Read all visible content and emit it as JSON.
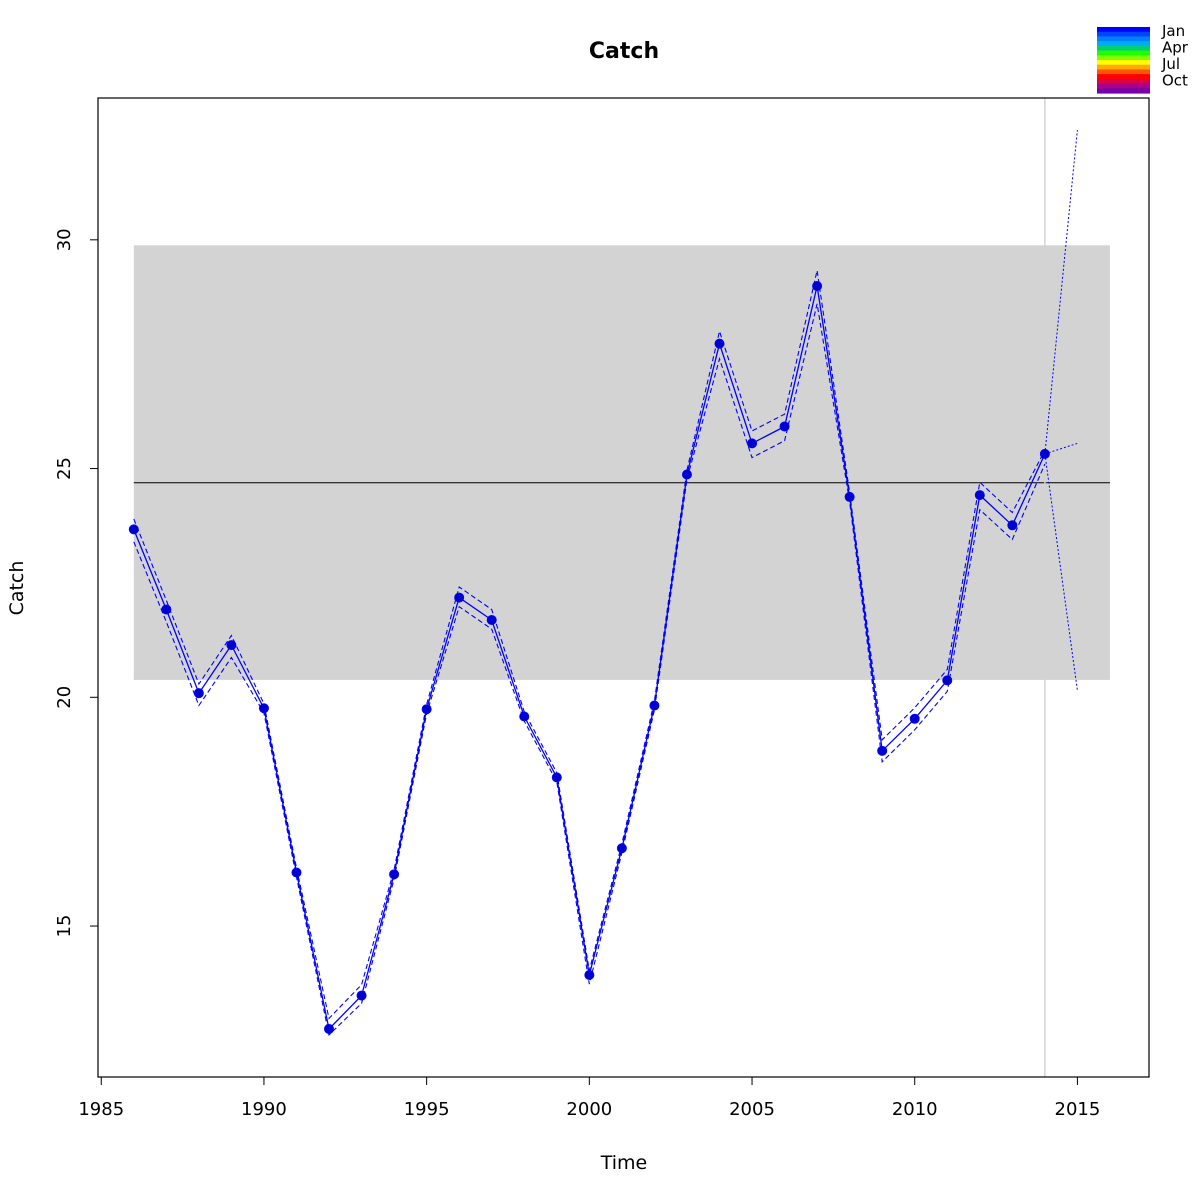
{
  "chart_data": {
    "type": "line",
    "title": "Catch",
    "xlabel": "Time",
    "ylabel": "Catch",
    "xlim": [
      1984.9,
      2017.2
    ],
    "ylim": [
      11.7,
      33.1
    ],
    "x_ticks": [
      1985,
      1990,
      1995,
      2000,
      2005,
      2010,
      2015
    ],
    "y_ticks": [
      15,
      20,
      25,
      30
    ],
    "band": {
      "x_range": [
        1986,
        2016
      ],
      "y_range": [
        20.38,
        29.88
      ],
      "color": "#d3d3d3"
    },
    "mean_line": {
      "x_range": [
        1986,
        2016
      ],
      "y": 24.69,
      "color": "#000000"
    },
    "forecast_marker_x": 2014,
    "series": [
      {
        "x": [
          1986,
          1987,
          1988,
          1989,
          1990,
          1991,
          1992,
          1993,
          1994,
          1995,
          1996,
          1997,
          1998,
          1999,
          2000,
          2001,
          2002,
          2003,
          2004,
          2005,
          2006,
          2007,
          2008,
          2009,
          2010,
          2011,
          2012,
          2013,
          2014
        ],
        "values": [
          23.67,
          21.92,
          20.09,
          21.14,
          19.76,
          16.17,
          12.75,
          13.48,
          16.13,
          19.74,
          22.18,
          21.69,
          19.58,
          18.25,
          13.93,
          16.7,
          19.82,
          24.87,
          27.73,
          25.55,
          25.92,
          28.99,
          24.38,
          18.83,
          19.53,
          20.37,
          24.42,
          23.76,
          25.32
        ],
        "upper": [
          23.9,
          22.12,
          20.29,
          21.35,
          19.86,
          16.27,
          12.98,
          13.72,
          16.23,
          19.84,
          22.41,
          21.92,
          19.68,
          18.35,
          14.03,
          16.8,
          19.92,
          24.97,
          28.0,
          25.82,
          26.19,
          29.33,
          24.48,
          19.07,
          19.77,
          20.61,
          24.7,
          24.04,
          25.4
        ],
        "lower": [
          23.4,
          21.65,
          19.82,
          20.87,
          19.66,
          16.07,
          12.62,
          13.31,
          16.03,
          19.64,
          21.98,
          21.49,
          19.48,
          18.15,
          13.73,
          16.6,
          19.72,
          24.77,
          27.4,
          25.24,
          25.61,
          28.6,
          24.28,
          18.59,
          19.29,
          20.13,
          24.1,
          23.45,
          25.1
        ],
        "color": "#0000ff",
        "point_color": "#0000cd"
      }
    ],
    "forecast": {
      "x": [
        2014,
        2015
      ],
      "values": [
        25.32,
        25.55
      ],
      "upper": [
        25.32,
        32.4
      ],
      "lower": [
        25.32,
        20.15
      ],
      "color": "#0000ff"
    },
    "legend": {
      "placement": "top-right",
      "labels": [
        "Jan",
        "Apr",
        "Jul",
        "Oct"
      ],
      "colors": [
        "#0000ff",
        "#0044ff",
        "#0080ff",
        "#00aaff",
        "#00d070",
        "#20ff00",
        "#80ff00",
        "#ffff00",
        "#ffaa00",
        "#ff5500",
        "#ff0000",
        "#dd0044",
        "#aa0088",
        "#7700aa"
      ]
    },
    "grid": false
  }
}
